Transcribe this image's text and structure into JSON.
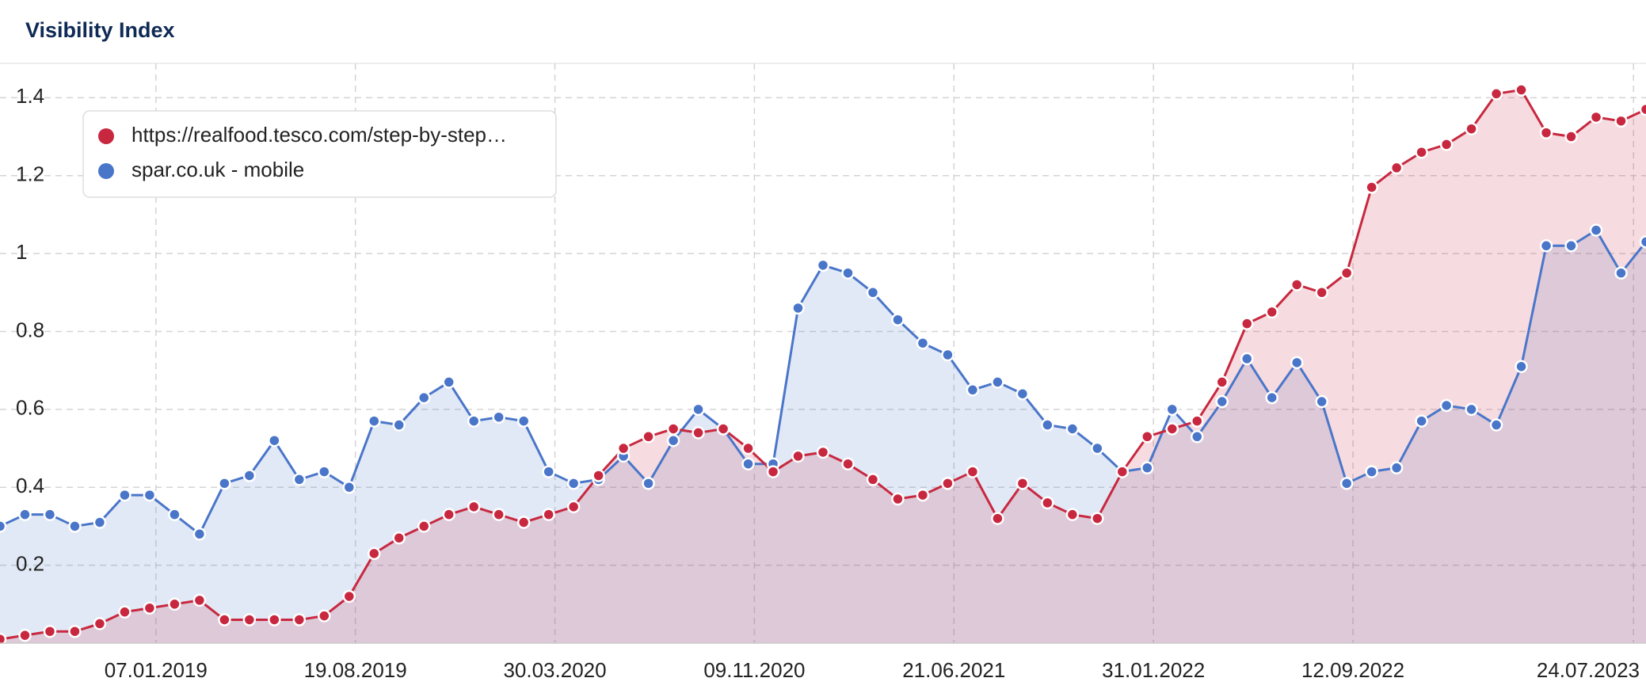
{
  "chart_data": {
    "type": "line",
    "title": "Visibility Index",
    "x": [
      "16.07.2018",
      "13.08.2018",
      "10.09.2018",
      "08.10.2018",
      "05.11.2018",
      "03.12.2018",
      "31.12.2018",
      "28.01.2019",
      "25.02.2019",
      "25.03.2019",
      "22.04.2019",
      "20.05.2019",
      "17.06.2019",
      "15.07.2019",
      "12.08.2019",
      "09.09.2019",
      "07.10.2019",
      "04.11.2019",
      "02.12.2019",
      "30.12.2019",
      "27.01.2020",
      "24.02.2020",
      "23.03.2020",
      "20.04.2020",
      "18.05.2020",
      "15.06.2020",
      "13.07.2020",
      "10.08.2020",
      "07.09.2020",
      "05.10.2020",
      "02.11.2020",
      "30.11.2020",
      "28.12.2020",
      "25.01.2021",
      "22.02.2021",
      "22.03.2021",
      "19.04.2021",
      "17.05.2021",
      "14.06.2021",
      "12.07.2021",
      "09.08.2021",
      "06.09.2021",
      "04.10.2021",
      "01.11.2021",
      "29.11.2021",
      "27.12.2021",
      "24.01.2022",
      "21.02.2022",
      "21.03.2022",
      "18.04.2022",
      "16.05.2022",
      "13.06.2022",
      "11.07.2022",
      "08.08.2022",
      "05.09.2022",
      "03.10.2022",
      "31.10.2022",
      "28.11.2022",
      "26.12.2022",
      "23.01.2023",
      "20.02.2023",
      "20.03.2023",
      "17.04.2023",
      "15.05.2023",
      "12.06.2023",
      "10.07.2023",
      "07.08.2023"
    ],
    "series": [
      {
        "name": "https://realfood.tesco.com/step-by-step…",
        "color": "#c8283f",
        "values": [
          0.01,
          0.02,
          0.03,
          0.03,
          0.05,
          0.08,
          0.09,
          0.1,
          0.11,
          0.06,
          0.06,
          0.06,
          0.06,
          0.07,
          0.12,
          0.23,
          0.27,
          0.3,
          0.33,
          0.35,
          0.33,
          0.31,
          0.33,
          0.35,
          0.43,
          0.5,
          0.53,
          0.55,
          0.54,
          0.55,
          0.5,
          0.44,
          0.48,
          0.49,
          0.46,
          0.42,
          0.37,
          0.38,
          0.41,
          0.44,
          0.32,
          0.41,
          0.36,
          0.33,
          0.32,
          0.44,
          0.53,
          0.55,
          0.57,
          0.67,
          0.82,
          0.85,
          0.92,
          0.9,
          0.95,
          1.17,
          1.22,
          1.26,
          1.28,
          1.32,
          1.41,
          1.42,
          1.31,
          1.3,
          1.35,
          1.34,
          1.37
        ]
      },
      {
        "name": "spar.co.uk - mobile",
        "color": "#4a76c9",
        "values": [
          0.3,
          0.33,
          0.33,
          0.3,
          0.31,
          0.38,
          0.38,
          0.33,
          0.28,
          0.41,
          0.43,
          0.52,
          0.42,
          0.44,
          0.4,
          0.57,
          0.56,
          0.63,
          0.67,
          0.57,
          0.58,
          0.57,
          0.44,
          0.41,
          0.42,
          0.48,
          0.41,
          0.52,
          0.6,
          0.55,
          0.46,
          0.46,
          0.86,
          0.97,
          0.95,
          0.9,
          0.83,
          0.77,
          0.74,
          0.65,
          0.67,
          0.64,
          0.56,
          0.55,
          0.5,
          0.44,
          0.45,
          0.6,
          0.53,
          0.62,
          0.73,
          0.63,
          0.72,
          0.62,
          0.41,
          0.44,
          0.45,
          0.57,
          0.61,
          0.6,
          0.56,
          0.71,
          1.02,
          1.02,
          1.06,
          0.95,
          1.03
        ]
      }
    ],
    "xlim": [
      "16.07.2018",
      "07.08.2023"
    ],
    "xticks": [
      "07.01.2019",
      "19.08.2019",
      "30.03.2020",
      "09.11.2020",
      "21.06.2021",
      "31.01.2022",
      "12.09.2022",
      "24.07.2023"
    ],
    "ylim": [
      0,
      1.48
    ],
    "yticks": [
      0.2,
      0.4,
      0.6,
      0.8,
      1,
      1.2,
      1.4
    ],
    "grid": true,
    "area": true,
    "legend": "top-left"
  }
}
